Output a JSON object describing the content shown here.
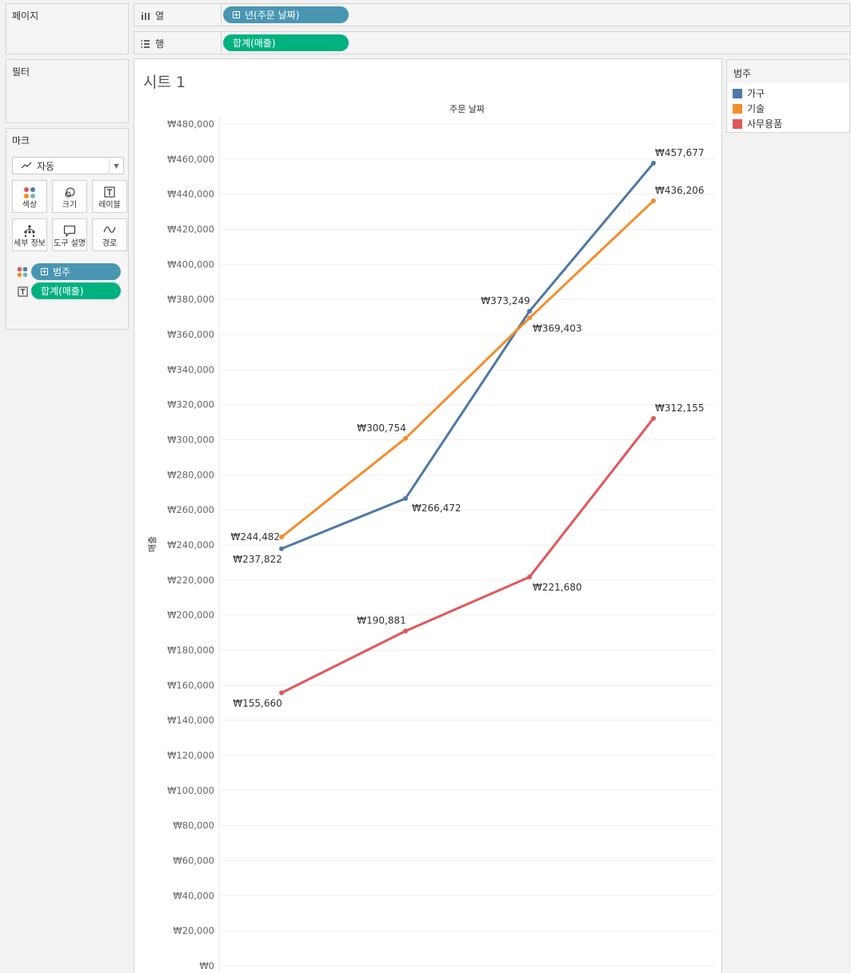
{
  "pages_panel": {
    "title": "페이지"
  },
  "filters_panel": {
    "title": "필터"
  },
  "marks_panel": {
    "title": "마크",
    "mark_type": "자동",
    "buttons": [
      {
        "label": "색상",
        "icon": "color-icon"
      },
      {
        "label": "크기",
        "icon": "size-icon"
      },
      {
        "label": "레이블",
        "icon": "label-icon"
      },
      {
        "label": "세부 정보",
        "icon": "detail-icon"
      },
      {
        "label": "도구 설명",
        "icon": "tooltip-icon"
      },
      {
        "label": "경로",
        "icon": "path-icon"
      }
    ],
    "fields": [
      {
        "label": "범주",
        "icon": "color-icon"
      },
      {
        "label": "합계(매출)",
        "icon": "label-icon"
      }
    ]
  },
  "columns_shelf": {
    "label": "열",
    "pill": "년(주문 날짜)"
  },
  "rows_shelf": {
    "label": "행",
    "pill": "합계(매출)"
  },
  "sheet": {
    "title": "시트 1"
  },
  "legend": {
    "title": "범주",
    "items": [
      {
        "label": "가구",
        "color": "#4e79a7"
      },
      {
        "label": "기술",
        "color": "#f28e2b"
      },
      {
        "label": "사무용품",
        "color": "#e15759"
      }
    ]
  },
  "chart_data": {
    "type": "line",
    "title": "주문 날짜",
    "xlabel": "주문 날짜",
    "ylabel": "매출",
    "x_count": 4,
    "ylim": [
      0,
      480000
    ],
    "y_ticks": [
      "₩0",
      "₩20,000",
      "₩40,000",
      "₩60,000",
      "₩80,000",
      "₩100,000",
      "₩120,000",
      "₩140,000",
      "₩160,000",
      "₩180,000",
      "₩200,000",
      "₩220,000",
      "₩240,000",
      "₩260,000",
      "₩280,000",
      "₩300,000",
      "₩320,000",
      "₩340,000",
      "₩360,000",
      "₩380,000",
      "₩400,000",
      "₩420,000",
      "₩440,000",
      "₩460,000",
      "₩480,000"
    ],
    "grid": true,
    "series": [
      {
        "name": "가구",
        "color": "#4e79a7",
        "values": [
          237822,
          266472,
          373249,
          457677
        ],
        "labels": [
          "₩237,822",
          "₩266,472",
          "₩373,249",
          "₩457,677"
        ]
      },
      {
        "name": "기술",
        "color": "#f28e2b",
        "values": [
          244482,
          300754,
          369403,
          436206
        ],
        "labels": [
          "₩244,482",
          "₩300,754",
          "₩369,403",
          "₩436,206"
        ]
      },
      {
        "name": "사무용품",
        "color": "#e15759",
        "values": [
          155660,
          190881,
          221680,
          312155
        ],
        "labels": [
          "₩155,660",
          "₩190,881",
          "₩221,680",
          "₩312,155"
        ]
      }
    ]
  }
}
